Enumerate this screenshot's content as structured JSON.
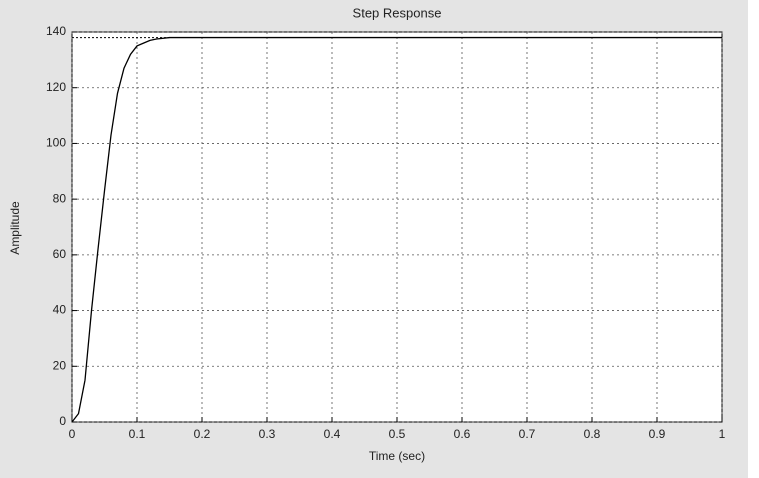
{
  "chart_data": {
    "type": "line",
    "title": "Step Response",
    "x_label": "Time (sec)",
    "y_label": "Amplitude",
    "x": [
      0,
      0.01,
      0.02,
      0.03,
      0.04,
      0.05,
      0.06,
      0.07,
      0.08,
      0.09,
      0.1,
      0.11,
      0.12,
      0.13,
      0.15,
      1
    ],
    "series": [
      {
        "name": "Step response",
        "color": "#000000",
        "values": [
          0,
          3,
          15,
          40,
          62,
          83,
          103,
          118,
          127,
          132,
          135,
          136,
          137,
          137.5,
          138,
          138
        ]
      }
    ],
    "steady_state": 138,
    "xlim": [
      0,
      1
    ],
    "xticks": [
      0,
      0.1,
      0.2,
      0.3,
      0.4,
      0.5,
      0.6,
      0.7,
      0.8,
      0.9,
      1
    ],
    "ylim": [
      0,
      140
    ],
    "yticks": [
      0,
      20,
      40,
      60,
      80,
      100,
      120,
      140
    ],
    "grid": true
  }
}
